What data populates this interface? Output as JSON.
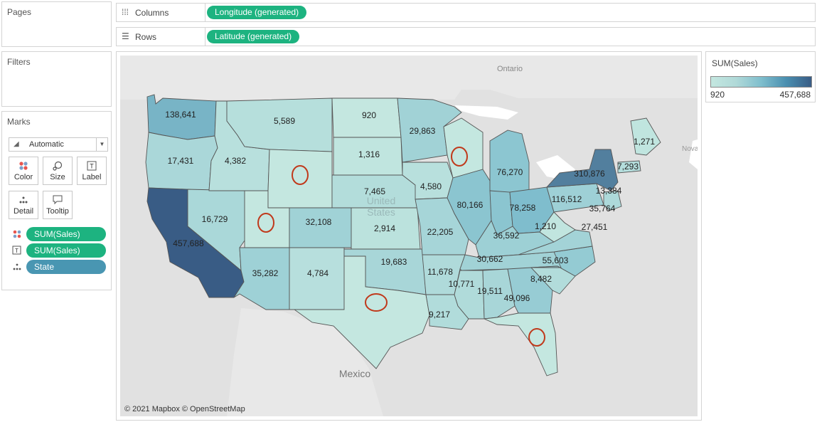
{
  "shelves": {
    "columns": {
      "icon": "columns-icon",
      "label": "Columns",
      "pill": "Longitude (generated)"
    },
    "rows": {
      "icon": "rows-icon",
      "label": "Rows",
      "pill": "Latitude (generated)"
    }
  },
  "cards": {
    "pages": {
      "title": "Pages"
    },
    "filters": {
      "title": "Filters"
    },
    "marks": {
      "title": "Marks",
      "mark_type": "Automatic",
      "buttons": {
        "color": "Color",
        "size": "Size",
        "label": "Label",
        "detail": "Detail",
        "tooltip": "Tooltip"
      },
      "pills": [
        {
          "icon": "color-dots-icon",
          "label": "SUM(Sales)"
        },
        {
          "icon": "label-text-icon",
          "label": "SUM(Sales)"
        },
        {
          "icon": "detail-dots-icon",
          "label": "State"
        }
      ]
    }
  },
  "legend": {
    "title": "SUM(Sales)",
    "min": "920",
    "max": "457,688",
    "colors": [
      "#c4e7e0",
      "#395c85"
    ]
  },
  "map": {
    "attribution": "© 2021 Mapbox © OpenStreetMap",
    "place_labels": {
      "ontario": "Ontario",
      "mexico": "Mexico",
      "united_states": "United States",
      "nova": "Nova"
    },
    "annotation_color": "#c0391b",
    "annotation_circles": [
      "Wyoming",
      "Utah",
      "Wisconsin",
      "Texas",
      "Florida"
    ],
    "state_sales": [
      {
        "state": "Washington",
        "label": "138,641"
      },
      {
        "state": "Oregon",
        "label": "17,431"
      },
      {
        "state": "California",
        "label": "457,688"
      },
      {
        "state": "Nevada",
        "label": "16,729"
      },
      {
        "state": "Idaho",
        "label": "4,382"
      },
      {
        "state": "Montana",
        "label": "5,589"
      },
      {
        "state": "Utah",
        "label": ""
      },
      {
        "state": "Arizona",
        "label": "35,282"
      },
      {
        "state": "Colorado",
        "label": "32,108"
      },
      {
        "state": "Wyoming",
        "label": ""
      },
      {
        "state": "New Mexico",
        "label": "4,784"
      },
      {
        "state": "North Dakota",
        "label": "920"
      },
      {
        "state": "South Dakota",
        "label": "1,316"
      },
      {
        "state": "Nebraska",
        "label": "7,465"
      },
      {
        "state": "Kansas",
        "label": "2,914"
      },
      {
        "state": "Oklahoma",
        "label": "19,683"
      },
      {
        "state": "Texas",
        "label": ""
      },
      {
        "state": "Minnesota",
        "label": "29,863"
      },
      {
        "state": "Iowa",
        "label": "4,580"
      },
      {
        "state": "Missouri",
        "label": "22,205"
      },
      {
        "state": "Arkansas",
        "label": "11,678"
      },
      {
        "state": "Louisiana",
        "label": "9,217"
      },
      {
        "state": "Wisconsin",
        "label": ""
      },
      {
        "state": "Illinois",
        "label": "80,166"
      },
      {
        "state": "Michigan",
        "label": "76,270"
      },
      {
        "state": "Indiana",
        "label": "78,258"
      },
      {
        "state": "Ohio",
        "label": "116,512"
      },
      {
        "state": "Kentucky",
        "label": "36,592"
      },
      {
        "state": "Tennessee",
        "label": "30,662"
      },
      {
        "state": "Mississippi",
        "label": "10,771"
      },
      {
        "state": "Alabama",
        "label": "19,511"
      },
      {
        "state": "Georgia",
        "label": "49,096"
      },
      {
        "state": "Florida",
        "label": ""
      },
      {
        "state": "South Carolina",
        "label": "8,482"
      },
      {
        "state": "North Carolina",
        "label": "55,603"
      },
      {
        "state": "Virginia",
        "label": "27,451"
      },
      {
        "state": "West Virginia",
        "label": "1,210"
      },
      {
        "state": "Pennsylvania",
        "label": "35,764"
      },
      {
        "state": "New York",
        "label": "310,876"
      },
      {
        "state": "New Jersey",
        "label": "13,384"
      },
      {
        "state": "Massachusetts",
        "label": "7,293"
      },
      {
        "state": "Maine",
        "label": "1,271"
      }
    ]
  }
}
